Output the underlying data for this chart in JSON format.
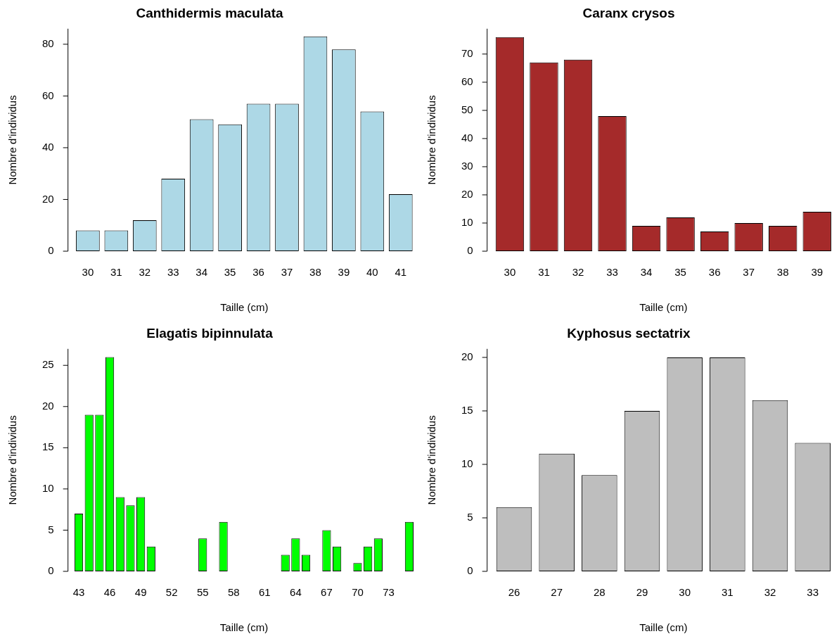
{
  "chart_data": [
    {
      "type": "bar",
      "title": "Canthidermis maculata",
      "xlabel": "Taille (cm)",
      "ylabel": "Nombre d'individus",
      "categories": [
        "30",
        "31",
        "32",
        "33",
        "34",
        "35",
        "36",
        "37",
        "38",
        "39",
        "40",
        "41"
      ],
      "values": [
        8,
        8,
        12,
        28,
        51,
        49,
        57,
        57,
        83,
        78,
        54,
        22
      ],
      "color": "#add8e6",
      "ylim": [
        0,
        86
      ],
      "yticks": [
        0,
        20,
        40,
        60,
        80
      ]
    },
    {
      "type": "bar",
      "title": "Caranx crysos",
      "xlabel": "Taille (cm)",
      "ylabel": "Nombre d'individus",
      "categories": [
        "30",
        "31",
        "32",
        "33",
        "34",
        "35",
        "36",
        "37",
        "38",
        "39"
      ],
      "values": [
        76,
        67,
        68,
        48,
        9,
        12,
        7,
        10,
        9,
        14
      ],
      "color": "#a52a2a",
      "ylim": [
        0,
        79
      ],
      "yticks": [
        0,
        10,
        20,
        30,
        40,
        50,
        60,
        70
      ]
    },
    {
      "type": "bar",
      "title": "Elagatis bipinnulata",
      "xlabel": "Taille (cm)",
      "ylabel": "Nombre d'individus",
      "categories": [
        "43",
        null,
        null,
        "46",
        null,
        null,
        "49",
        null,
        null,
        "52",
        null,
        null,
        "55",
        null,
        null,
        "58",
        null,
        null,
        "61",
        null,
        null,
        "64",
        null,
        null,
        "67",
        null,
        null,
        "70",
        null,
        null,
        "73",
        null,
        null
      ],
      "values": [
        7,
        19,
        19,
        26,
        9,
        8,
        9,
        3,
        0,
        0,
        0,
        0,
        4,
        0,
        6,
        0,
        0,
        0,
        0,
        0,
        2,
        4,
        2,
        0,
        5,
        3,
        0,
        1,
        3,
        4,
        0,
        0,
        6
      ],
      "color": "#00ff00",
      "ylim": [
        0,
        27
      ],
      "yticks": [
        0,
        5,
        10,
        15,
        20,
        25
      ]
    },
    {
      "type": "bar",
      "title": "Kyphosus sectatrix",
      "xlabel": "Taille (cm)",
      "ylabel": "Nombre d'individus",
      "categories": [
        "26",
        "27",
        "28",
        "29",
        "30",
        "31",
        "32",
        "33"
      ],
      "values": [
        6,
        11,
        9,
        15,
        20,
        20,
        16,
        12
      ],
      "color": "#bebebe",
      "ylim": [
        0,
        20.8
      ],
      "yticks": [
        0,
        5,
        10,
        15,
        20
      ]
    }
  ]
}
